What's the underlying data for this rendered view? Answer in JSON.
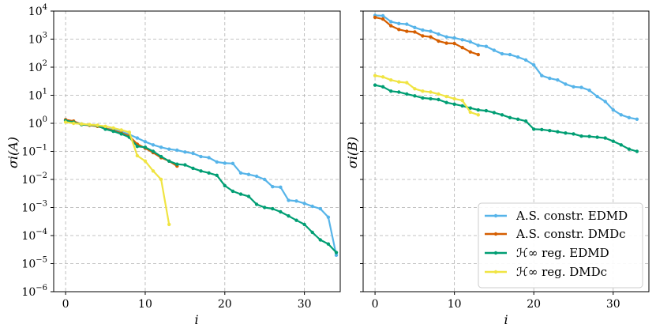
{
  "chart_data": [
    {
      "type": "line",
      "xlabel": "i",
      "ylabel": "σi(A)",
      "yscale": "log",
      "ylim": [
        1e-06,
        10000.0
      ],
      "xlim": [
        -1.5,
        34.5
      ],
      "xticks": [
        0,
        10,
        20,
        30
      ],
      "yticks": [
        {
          "value": 1e-06,
          "base": "10",
          "exp": "−6"
        },
        {
          "value": 1e-05,
          "base": "10",
          "exp": "−5"
        },
        {
          "value": 0.0001,
          "base": "10",
          "exp": "−4"
        },
        {
          "value": 0.001,
          "base": "10",
          "exp": "−3"
        },
        {
          "value": 0.01,
          "base": "10",
          "exp": "−2"
        },
        {
          "value": 0.1,
          "base": "10",
          "exp": "−1"
        },
        {
          "value": 1,
          "base": "10",
          "exp": "0"
        },
        {
          "value": 10,
          "base": "10",
          "exp": "1"
        },
        {
          "value": 100,
          "base": "10",
          "exp": "2"
        },
        {
          "value": 1000,
          "base": "10",
          "exp": "3"
        },
        {
          "value": 10000,
          "base": "10",
          "exp": "4"
        }
      ],
      "grid": true,
      "series": [
        {
          "name": "A.S. constr. EDMD",
          "color": "#56b4e9",
          "values": [
            1.3,
            1.15,
            0.95,
            0.85,
            0.8,
            0.65,
            0.6,
            0.5,
            0.4,
            0.3,
            0.22,
            0.17,
            0.14,
            0.12,
            0.11,
            0.095,
            0.085,
            0.065,
            0.06,
            0.042,
            0.038,
            0.037,
            0.017,
            0.015,
            0.013,
            0.01,
            0.0055,
            0.0053,
            0.0018,
            0.0017,
            0.0014,
            0.0011,
            0.0009,
            0.00045,
            2e-05
          ]
        },
        {
          "name": "A.S. constr. DMDc",
          "color": "#d55e00",
          "values": [
            1.35,
            1.2,
            0.9,
            0.85,
            0.78,
            0.65,
            0.55,
            0.45,
            0.35,
            0.18,
            0.13,
            0.09,
            0.06,
            0.045,
            0.03
          ]
        },
        {
          "name": "ℋ∞ reg. EDMD",
          "color": "#009e73",
          "values": [
            1.25,
            1.1,
            0.9,
            0.88,
            0.82,
            0.62,
            0.52,
            0.42,
            0.32,
            0.15,
            0.14,
            0.1,
            0.065,
            0.045,
            0.035,
            0.033,
            0.025,
            0.02,
            0.017,
            0.014,
            0.006,
            0.0038,
            0.003,
            0.0025,
            0.0013,
            0.001,
            0.0009,
            0.0007,
            0.0005,
            0.00035,
            0.00025,
            0.00013,
            7e-05,
            5e-05,
            2.5e-05
          ]
        },
        {
          "name": "ℋ∞ reg. DMDc",
          "color": "#f0e442",
          "values": [
            1.1,
            1.0,
            0.95,
            0.9,
            0.85,
            0.78,
            0.68,
            0.58,
            0.48,
            0.07,
            0.045,
            0.02,
            0.01,
            0.00025
          ]
        }
      ]
    },
    {
      "type": "line",
      "xlabel": "i",
      "ylabel": "σi(B)",
      "yscale": "log",
      "ylim": [
        1e-06,
        10000.0
      ],
      "xlim": [
        -1.5,
        34.5
      ],
      "xticks": [
        0,
        10,
        20,
        30
      ],
      "grid": true,
      "legend": "bottom-right",
      "series": [
        {
          "name": "A.S. constr. EDMD",
          "color": "#56b4e9",
          "values": [
            7000,
            6800,
            4200,
            3600,
            3400,
            2600,
            2100,
            1900,
            1500,
            1200,
            1100,
            950,
            800,
            600,
            550,
            400,
            300,
            280,
            230,
            180,
            120,
            50,
            40,
            35,
            25,
            20,
            19,
            15,
            9,
            6,
            3,
            2,
            1.6,
            1.4
          ]
        },
        {
          "name": "A.S. constr. DMDc",
          "color": "#d55e00",
          "values": [
            6000,
            5200,
            3000,
            2200,
            1900,
            1800,
            1300,
            1200,
            850,
            720,
            700,
            500,
            350,
            280
          ]
        },
        {
          "name": "ℋ∞ reg. EDMD",
          "color": "#009e73",
          "values": [
            23,
            20,
            14,
            13,
            11,
            9.5,
            8,
            7.5,
            7,
            5.5,
            4.8,
            4.2,
            3.5,
            3,
            2.8,
            2.4,
            2,
            1.6,
            1.4,
            1.2,
            0.62,
            0.6,
            0.55,
            0.5,
            0.45,
            0.42,
            0.35,
            0.34,
            0.32,
            0.3,
            0.23,
            0.17,
            0.12,
            0.1
          ]
        },
        {
          "name": "ℋ∞ reg. DMDc",
          "color": "#f0e442",
          "values": [
            50,
            45,
            35,
            30,
            28,
            17,
            14,
            13,
            11,
            9,
            7.5,
            6.5,
            2.5,
            2
          ]
        }
      ]
    }
  ],
  "legend": [
    {
      "label": "A.S. constr. EDMD",
      "color": "#56b4e9"
    },
    {
      "label": "A.S. constr. DMDc",
      "color": "#d55e00"
    },
    {
      "label": "ℋ∞ reg. EDMD",
      "color": "#009e73"
    },
    {
      "label": "ℋ∞ reg. DMDc",
      "color": "#f0e442"
    }
  ]
}
